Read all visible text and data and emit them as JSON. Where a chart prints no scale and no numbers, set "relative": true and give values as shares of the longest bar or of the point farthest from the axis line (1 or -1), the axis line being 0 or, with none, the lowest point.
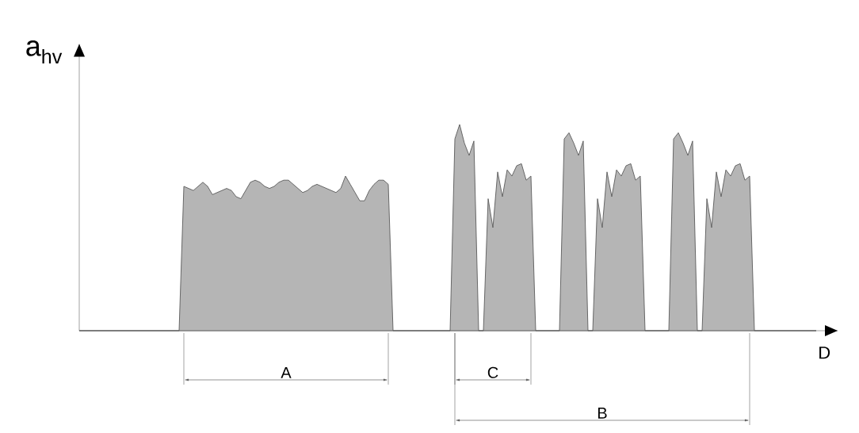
{
  "chart_data": {
    "type": "area",
    "relative": true,
    "ylabel": "a$_{hv}$",
    "xlabel": "D",
    "color": "#5a5a5a",
    "annotations": [
      "A",
      "C",
      "B"
    ],
    "categories": [
      null,
      null,
      null,
      null,
      null,
      null,
      null,
      null,
      null,
      null,
      null,
      null,
      null,
      null,
      null,
      null,
      null,
      null,
      null,
      null,
      null,
      null,
      null,
      null,
      null,
      null,
      null,
      null,
      null,
      null,
      null,
      null,
      null,
      null,
      null,
      null,
      null,
      null,
      null,
      null,
      null,
      null,
      null,
      null,
      null,
      null,
      null,
      null,
      null,
      null,
      null,
      null,
      null,
      null,
      null,
      null,
      null,
      null,
      null,
      null,
      null,
      null,
      null,
      null,
      null,
      null,
      null,
      null,
      null,
      null,
      null,
      null,
      null,
      null,
      null,
      null,
      null,
      null,
      null,
      null,
      null,
      null,
      null,
      null,
      null,
      null,
      null,
      null,
      null,
      null,
      null,
      null,
      null,
      null,
      null,
      null,
      null,
      null,
      null,
      null,
      null,
      null,
      null,
      null,
      null,
      null,
      null,
      null,
      null,
      null,
      null,
      null,
      null,
      null,
      null,
      null,
      null,
      null,
      null,
      null,
      null,
      null,
      null,
      null,
      null,
      null,
      null,
      null,
      null,
      null,
      null,
      null,
      null,
      null,
      null,
      null,
      null,
      null,
      null,
      null,
      null,
      null,
      null,
      null,
      null,
      null,
      null,
      null,
      null,
      null,
      null,
      null,
      null,
      null,
      null,
      null
    ],
    "values": [
      0,
      0,
      0,
      0,
      0,
      0,
      0,
      0,
      0,
      0,
      0,
      0,
      0,
      0,
      0,
      0,
      0,
      0,
      0,
      0,
      0,
      0,
      0.7,
      0.69,
      0.68,
      0.7,
      0.72,
      0.7,
      0.66,
      0.67,
      0.68,
      0.69,
      0.68,
      0.65,
      0.64,
      0.68,
      0.72,
      0.73,
      0.72,
      0.7,
      0.69,
      0.7,
      0.72,
      0.73,
      0.73,
      0.71,
      0.69,
      0.67,
      0.68,
      0.7,
      0.71,
      0.7,
      0.69,
      0.68,
      0.67,
      0.69,
      0.75,
      0.71,
      0.67,
      0.63,
      0.63,
      0.68,
      0.71,
      0.73,
      0.73,
      0.71,
      0,
      0,
      0,
      0,
      0,
      0,
      0,
      0,
      0,
      0,
      0,
      0,
      0,
      0.93,
      1.0,
      0.91,
      0.85,
      0.92,
      0,
      0,
      0.64,
      0.5,
      0.77,
      0.65,
      0.78,
      0.75,
      0.8,
      0.81,
      0.73,
      0.75,
      0,
      0,
      0,
      0,
      0,
      0,
      0.93,
      0.96,
      0.91,
      0.85,
      0.92,
      0,
      0,
      0.64,
      0.5,
      0.77,
      0.65,
      0.78,
      0.75,
      0.8,
      0.81,
      0.73,
      0.75,
      0,
      0,
      0,
      0,
      0,
      0,
      0.93,
      0.96,
      0.91,
      0.85,
      0.92,
      0,
      0,
      0.64,
      0.5,
      0.77,
      0.65,
      0.78,
      0.75,
      0.8,
      0.81,
      0.73,
      0.75,
      0,
      0,
      0,
      0,
      0,
      0,
      0,
      0,
      0,
      0,
      0,
      0,
      0,
      0
    ]
  }
}
